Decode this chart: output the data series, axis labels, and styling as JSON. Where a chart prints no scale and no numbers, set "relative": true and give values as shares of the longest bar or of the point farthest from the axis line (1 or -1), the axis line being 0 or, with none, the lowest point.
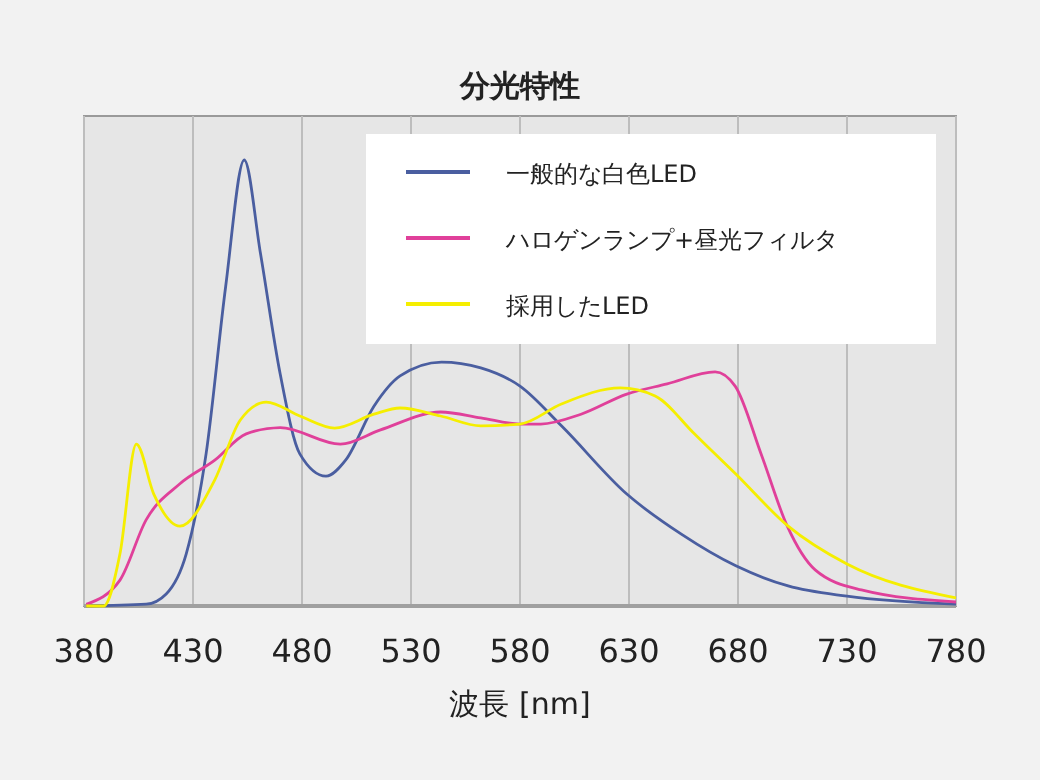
{
  "chart_data": {
    "type": "line",
    "title": "分光特性",
    "xlabel": "波長 [nm]",
    "relative": true,
    "xlim": [
      380,
      780
    ],
    "xticks": [
      380,
      430,
      480,
      530,
      580,
      630,
      680,
      730,
      780
    ],
    "grid": "x",
    "legend": "top right",
    "series": [
      {
        "name": "一般的な白色LED",
        "color": "#4a5ea0",
        "x": [
          381,
          408.5,
          417.7,
          426.9,
          436,
          445,
          453.5,
          461,
          470,
          479,
          491,
          500,
          513,
          525,
          544,
          562,
          580,
          599,
          629,
          654,
          679,
          703,
          730,
          780
        ],
        "values": [
          0,
          0.004,
          0.027,
          0.117,
          0.341,
          0.717,
          1,
          0.789,
          0.52,
          0.341,
          0.291,
          0.327,
          0.448,
          0.516,
          0.547,
          0.534,
          0.493,
          0.404,
          0.251,
          0.161,
          0.09,
          0.045,
          0.022,
          0.004
        ]
      },
      {
        "name": "ハロゲンランプ+昼光フィルタ",
        "color": "#e0409a",
        "x": [
          381,
          396.5,
          408.5,
          424,
          440,
          454.4,
          470,
          497.6,
          516,
          543.6,
          562,
          580,
          589.5,
          608,
          629,
          647.5,
          669.5,
          678.7,
          690.6,
          702.6,
          715.4,
          736.6,
          780
        ],
        "values": [
          0.004,
          0.058,
          0.193,
          0.274,
          0.327,
          0.386,
          0.4,
          0.363,
          0.395,
          0.435,
          0.422,
          0.408,
          0.408,
          0.43,
          0.475,
          0.498,
          0.525,
          0.493,
          0.341,
          0.179,
          0.081,
          0.036,
          0.009
        ]
      },
      {
        "name": "採用したLED",
        "color": "#f5ee00",
        "x": [
          381,
          389,
          396.5,
          404,
          412,
          424,
          440,
          451.7,
          463.6,
          479,
          495,
          513,
          525,
          543.6,
          562,
          580,
          599,
          626,
          642,
          660,
          679,
          703,
          730,
          780
        ],
        "values": [
          0,
          0,
          0.117,
          0.363,
          0.251,
          0.179,
          0.283,
          0.417,
          0.457,
          0.426,
          0.399,
          0.43,
          0.444,
          0.426,
          0.404,
          0.408,
          0.453,
          0.489,
          0.471,
          0.386,
          0.296,
          0.179,
          0.094,
          0.018
        ]
      }
    ]
  }
}
